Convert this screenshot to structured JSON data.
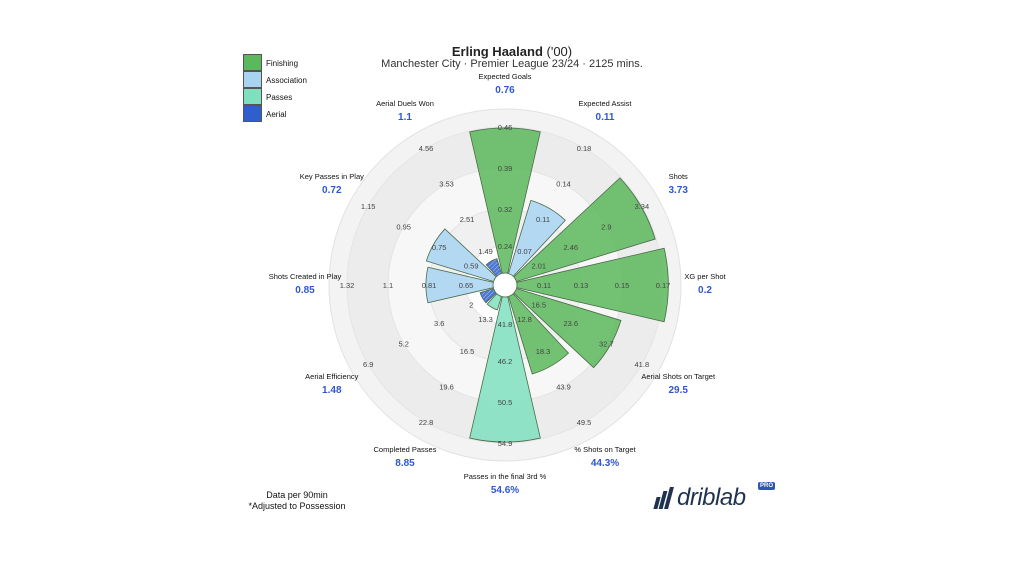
{
  "header": {
    "player_name": "Erling Haaland",
    "birth_year": "('00)",
    "subtitle": "Manchester City · Premier League 23/24 · 2125 mins."
  },
  "legend": [
    {
      "label": "Finishing",
      "color": "#5cb85c"
    },
    {
      "label": "Association",
      "color": "#a8d4f2"
    },
    {
      "label": "Passes",
      "color": "#7fe0c0"
    },
    {
      "label": "Aerial",
      "color": "#2f5fcc"
    }
  ],
  "footnote": {
    "line1": "Data per 90min",
    "line2": "*Adjusted to Possession"
  },
  "logo": {
    "text": "driblab",
    "badge": "PRO"
  },
  "chart_data": {
    "type": "polar-bar",
    "metrics": [
      {
        "name": "Expected Goals",
        "value": "0.76",
        "fraction": 0.93,
        "group": "Finishing",
        "ticks": [
          "0.24",
          "0.32",
          "0.39",
          "0.46"
        ]
      },
      {
        "name": "Expected Assist",
        "value": "0.11",
        "fraction": 0.49,
        "group": "Association",
        "ticks": [
          "0.07",
          "0.11",
          "0.14",
          "0.18"
        ]
      },
      {
        "name": "Shots",
        "value": "3.73",
        "fraction": 0.93,
        "group": "Finishing",
        "ticks": [
          "2.01",
          "2.46",
          "2.9",
          "3.34"
        ]
      },
      {
        "name": "XG per Shot",
        "value": "0.2",
        "fraction": 0.97,
        "group": "Finishing",
        "ticks": [
          "0.11",
          "0.13",
          "0.15",
          "0.17"
        ]
      },
      {
        "name": "Aerial Shots on Target",
        "value": "29.5",
        "fraction": 0.7,
        "group": "Finishing",
        "ticks": [
          "16.5",
          "23.6",
          "32.7",
          "41.8"
        ]
      },
      {
        "name": "% Shots on Target",
        "value": "44.3%",
        "fraction": 0.52,
        "group": "Finishing",
        "ticks": [
          "12.8",
          "18.3",
          "43.9",
          "49.5"
        ]
      },
      {
        "name": "Passes in the final 3rd %",
        "value": "54.6%",
        "fraction": 0.93,
        "group": "Passes",
        "ticks": [
          "41.8",
          "46.2",
          "50.5",
          "54.9"
        ]
      },
      {
        "name": "Completed Passes",
        "value": "8.85",
        "fraction": 0.09,
        "group": "Passes",
        "ticks": [
          "13.3",
          "16.5",
          "19.6",
          "22.8"
        ]
      },
      {
        "name": "Aerial Efficiency",
        "value": "1.48",
        "fraction": 0.09,
        "group": "Aerial",
        "ticks": [
          "2",
          "3.6",
          "5.2",
          "6.9"
        ]
      },
      {
        "name": "Shots Created in Play",
        "value": "0.85",
        "fraction": 0.43,
        "group": "Association",
        "ticks": [
          "0.65",
          "0.81",
          "1.1",
          "1.32"
        ]
      },
      {
        "name": "Key Passes in Play",
        "value": "0.72",
        "fraction": 0.45,
        "group": "Association",
        "ticks": [
          "0.59",
          "0.75",
          "0.95",
          "1.15"
        ]
      },
      {
        "name": "Aerial Duels Won",
        "value": "1.1",
        "fraction": 0.1,
        "group": "Aerial",
        "ticks": [
          "1.49",
          "2.51",
          "3.53",
          "4.56"
        ]
      }
    ]
  }
}
